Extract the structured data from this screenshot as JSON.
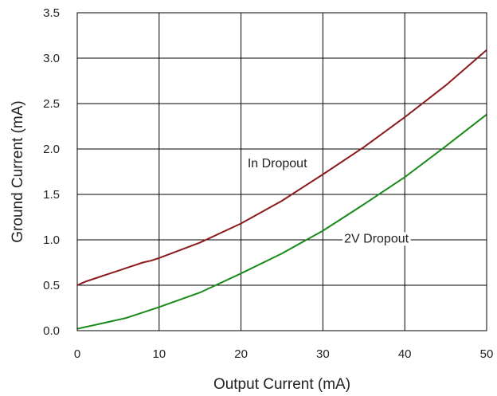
{
  "chart_data": {
    "type": "line",
    "xlabel": "Output Current (mA)",
    "ylabel": "Ground Current (mA)",
    "xlim": [
      0,
      50
    ],
    "ylim": [
      0,
      3.5
    ],
    "xticks": [
      "0",
      "10",
      "20",
      "30",
      "40",
      "50"
    ],
    "yticks": [
      "0.0",
      "0.5",
      "1.0",
      "1.5",
      "2.0",
      "2.5",
      "3.0",
      "3.5"
    ],
    "grid": true,
    "x": [
      0,
      1,
      2,
      3,
      4,
      5,
      6,
      7,
      8,
      9,
      10,
      15,
      20,
      25,
      30,
      35,
      40,
      45,
      50
    ],
    "series": [
      {
        "name": "In Dropout",
        "color": "#8b1a1a",
        "values": [
          0.5,
          0.54,
          0.57,
          0.6,
          0.63,
          0.66,
          0.69,
          0.72,
          0.75,
          0.77,
          0.8,
          0.97,
          1.18,
          1.43,
          1.72,
          2.02,
          2.35,
          2.7,
          3.09
        ]
      },
      {
        "name": "2V Dropout",
        "color": "#1a8a1a",
        "values": [
          0.02,
          0.04,
          0.06,
          0.08,
          0.1,
          0.12,
          0.14,
          0.17,
          0.2,
          0.23,
          0.26,
          0.42,
          0.63,
          0.85,
          1.1,
          1.39,
          1.69,
          2.03,
          2.38
        ]
      }
    ],
    "annotations": [
      "In Dropout",
      "2V Dropout"
    ]
  }
}
